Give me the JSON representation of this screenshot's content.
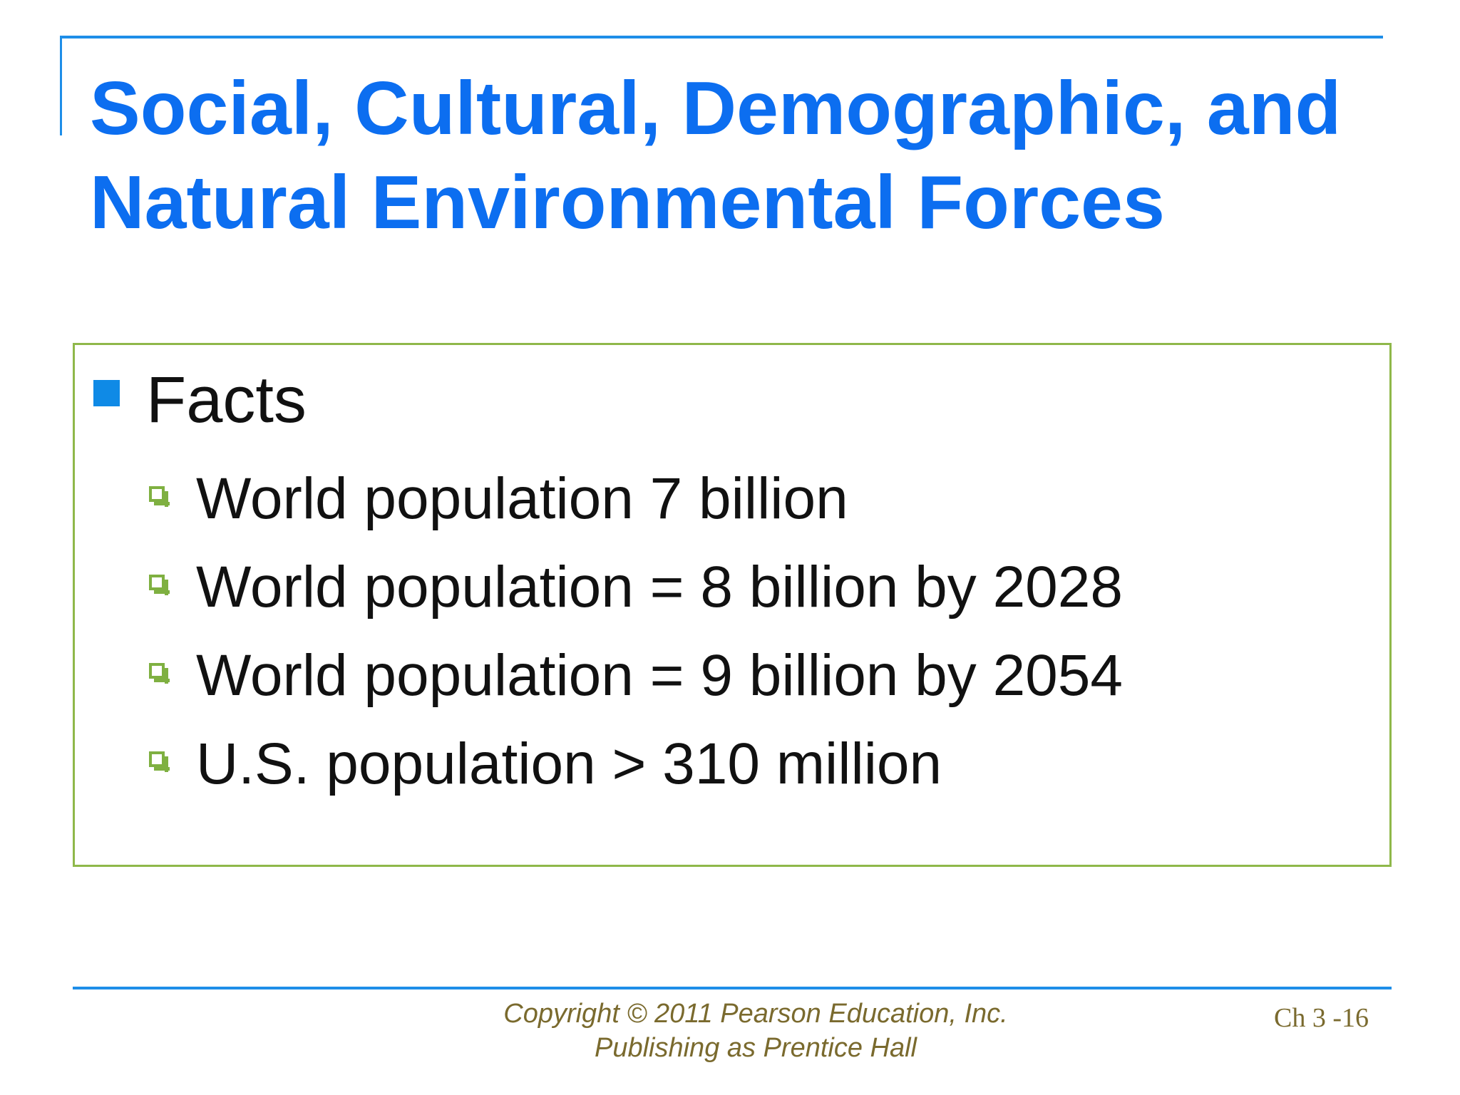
{
  "slide": {
    "title_lines": [
      "Social, Cultural, Demographic, and",
      "Natural Environmental Forces"
    ],
    "main_bullet": "Facts",
    "sub_bullets": [
      "World population 7 billion",
      "World population = 8 billion by 2028",
      "World population = 9 billion by 2054",
      "U.S. population > 310 million"
    ],
    "footer": {
      "copyright_line1": "Copyright © 2011 Pearson Education, Inc.",
      "copyright_line2": "Publishing as Prentice Hall",
      "page_number": "Ch 3 -16"
    }
  },
  "colors": {
    "title": "#0c6ef0",
    "rule_lines": "#1e8ee8",
    "box_border": "#8fb84a",
    "main_bullet": "#0f8ae6",
    "sub_bullet": "#7fb041",
    "footer_text": "#7a6a2e"
  }
}
